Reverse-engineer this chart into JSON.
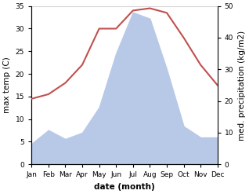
{
  "months": [
    "Jan",
    "Feb",
    "Mar",
    "Apr",
    "May",
    "Jun",
    "Jul",
    "Aug",
    "Sep",
    "Oct",
    "Nov",
    "Dec"
  ],
  "temp": [
    14.5,
    15.5,
    18.0,
    22.0,
    30.0,
    30.0,
    34.0,
    34.5,
    33.5,
    28.0,
    22.0,
    17.5
  ],
  "precip": [
    6.5,
    10.8,
    8.0,
    10.0,
    18.0,
    35.0,
    48.0,
    46.0,
    30.0,
    12.0,
    8.5,
    8.5
  ],
  "temp_color": "#c0504d",
  "precip_fill_color": "#b8c9e8",
  "background_color": "#ffffff",
  "xlabel": "date (month)",
  "ylabel_left": "max temp (C)",
  "ylabel_right": "med. precipitation (kg/m2)",
  "ylim_left": [
    0,
    35
  ],
  "ylim_right": [
    0,
    50
  ],
  "yticks_left": [
    0,
    5,
    10,
    15,
    20,
    25,
    30,
    35
  ],
  "yticks_right": [
    0,
    10,
    20,
    30,
    40,
    50
  ],
  "label_fontsize": 7.5,
  "tick_fontsize": 6.5
}
